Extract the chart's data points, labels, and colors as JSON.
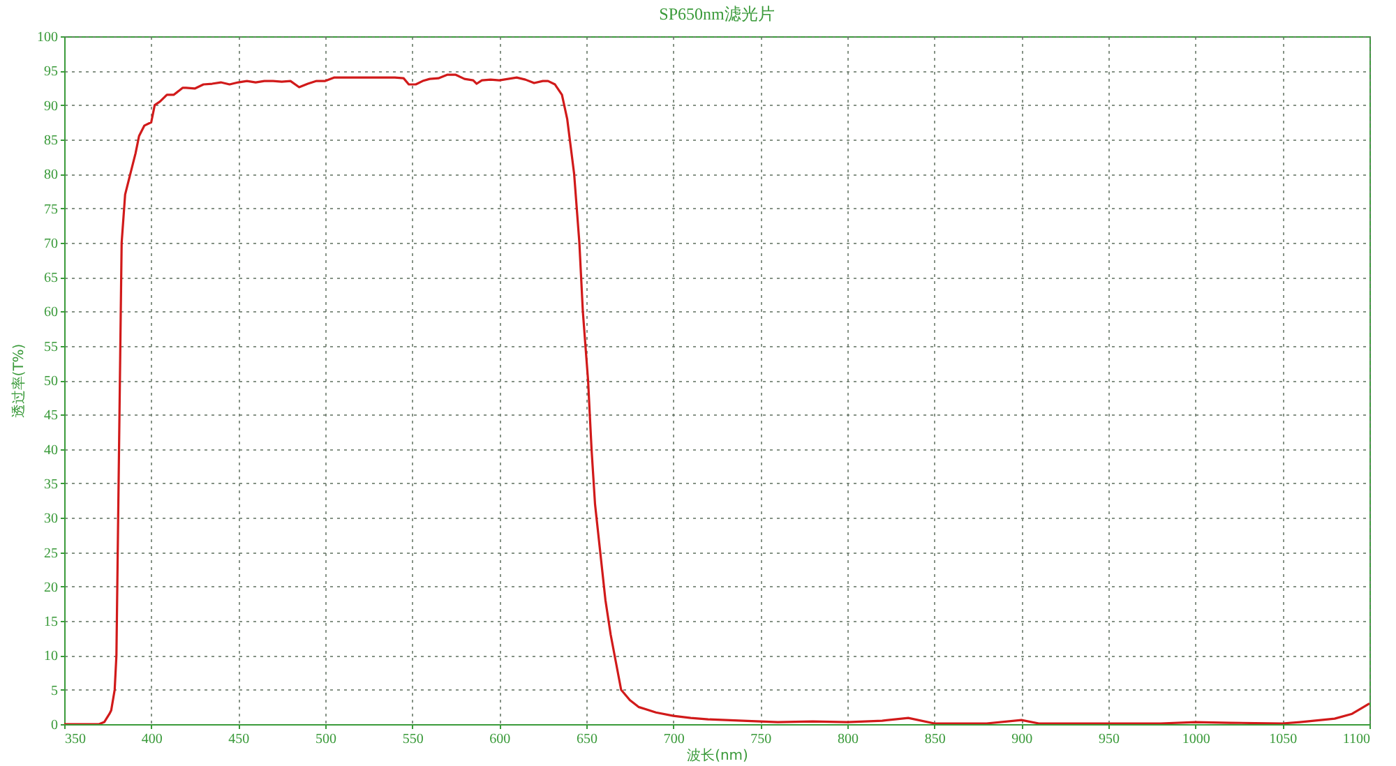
{
  "chart_data": {
    "type": "line",
    "title": "SP650nm滤光片",
    "xlabel": "波长(nm)",
    "ylabel": "透过率(T%)",
    "xlim": [
      350,
      1100
    ],
    "xticks": [
      350,
      400,
      450,
      500,
      550,
      600,
      650,
      700,
      750,
      800,
      850,
      900,
      950,
      1000,
      1050,
      1100
    ],
    "ylim": [
      0,
      100
    ],
    "yticks": [
      0,
      5,
      10,
      15,
      20,
      25,
      30,
      35,
      40,
      45,
      50,
      55,
      60,
      65,
      70,
      75,
      80,
      85,
      90,
      95,
      100
    ],
    "grid": true,
    "marker": "none",
    "line_style": "solid",
    "series": [
      {
        "color": "#d11a1a",
        "x": [
          350,
          370,
          373,
          376,
          377,
          379,
          380,
          381,
          382,
          383,
          385,
          388,
          391,
          393,
          396,
          400,
          402,
          405,
          409,
          413,
          418,
          420,
          425,
          430,
          435,
          440,
          445,
          450,
          455,
          460,
          465,
          470,
          475,
          480,
          485,
          490,
          495,
          500,
          505,
          510,
          520,
          530,
          540,
          545,
          548,
          552,
          556,
          560,
          565,
          570,
          575,
          580,
          585,
          587,
          590,
          595,
          600,
          605,
          610,
          615,
          620,
          625,
          628,
          632,
          636,
          639,
          641,
          643,
          646,
          648,
          651,
          653,
          655,
          658,
          661,
          664,
          667,
          670,
          675,
          680,
          690,
          700,
          710,
          720,
          740,
          760,
          780,
          800,
          820,
          835,
          850,
          880,
          900,
          910,
          950,
          980,
          1000,
          1020,
          1050,
          1060,
          1080,
          1090,
          1100
        ],
        "values": [
          0,
          0,
          0.3,
          1.5,
          2,
          5,
          10,
          30,
          50,
          70,
          77,
          80,
          83,
          85.5,
          87,
          87.5,
          90,
          90.5,
          91.5,
          91.5,
          92.5,
          92.5,
          92.4,
          93,
          93.1,
          93.3,
          93,
          93.3,
          93.5,
          93.3,
          93.5,
          93.5,
          93.4,
          93.5,
          92.6,
          93.1,
          93.5,
          93.5,
          94,
          94,
          94,
          94,
          94,
          93.9,
          93,
          93,
          93.5,
          93.8,
          93.9,
          94.4,
          94.4,
          93.8,
          93.6,
          93.1,
          93.6,
          93.7,
          93.6,
          93.8,
          94,
          93.7,
          93.2,
          93.5,
          93.5,
          93,
          91.5,
          88,
          84,
          80,
          70,
          60,
          50,
          40,
          32,
          25,
          18,
          13,
          9,
          5,
          3.5,
          2.5,
          1.7,
          1.2,
          0.9,
          0.7,
          0.5,
          0.3,
          0.4,
          0.3,
          0.5,
          0.9,
          0.1,
          0.1,
          0.6,
          0.1,
          0.1,
          0.1,
          0.3,
          0.2,
          0.1,
          0.3,
          0.8,
          1.5,
          3
        ]
      }
    ]
  }
}
